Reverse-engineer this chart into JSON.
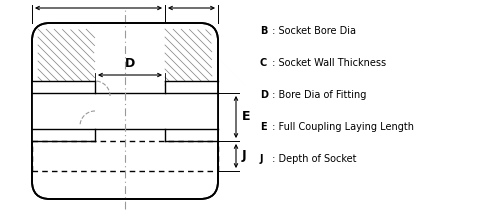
{
  "bg_color": "#ffffff",
  "line_color": "#000000",
  "hatch_color": "#555555",
  "dash_color": "#999999",
  "legend_lines": [
    "B : Socket Bore Dia",
    "C : Socket Wall Thickness",
    "D : Bore Dia of Fitting",
    "E : Full Coupling Laying Length",
    "J : Depth of Socket"
  ],
  "legend_bold": [
    "B",
    "C",
    "D",
    "E",
    "J"
  ],
  "figsize": [
    4.97,
    2.21
  ],
  "dpi": 100
}
